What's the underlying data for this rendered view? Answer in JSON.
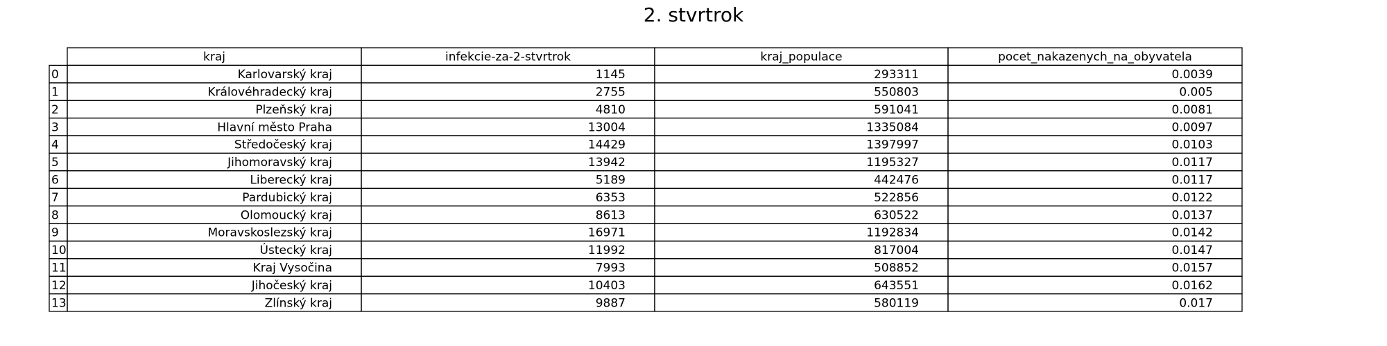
{
  "chart_data": {
    "type": "table",
    "title": "2. stvrtrok",
    "columns": [
      "kraj",
      "infekcie-za-2-stvrtrok",
      "kraj_populace",
      "pocet_nakazenych_na_obyvatela"
    ],
    "row_labels": [
      "0",
      "1",
      "2",
      "3",
      "4",
      "5",
      "6",
      "7",
      "8",
      "9",
      "10",
      "11",
      "12",
      "13"
    ],
    "rows": [
      [
        "Karlovarský kraj",
        "1145",
        "293311",
        "0.0039"
      ],
      [
        "Královéhradecký kraj",
        "2755",
        "550803",
        "0.005"
      ],
      [
        "Plzeňský kraj",
        "4810",
        "591041",
        "0.0081"
      ],
      [
        "Hlavní město Praha",
        "13004",
        "1335084",
        "0.0097"
      ],
      [
        "Středočeský kraj",
        "14429",
        "1397997",
        "0.0103"
      ],
      [
        "Jihomoravský kraj",
        "13942",
        "1195327",
        "0.0117"
      ],
      [
        "Liberecký kraj",
        "5189",
        "442476",
        "0.0117"
      ],
      [
        "Pardubický kraj",
        "6353",
        "522856",
        "0.0122"
      ],
      [
        "Olomoucký kraj",
        "8613",
        "630522",
        "0.0137"
      ],
      [
        "Moravskoslezský kraj",
        "16971",
        "1192834",
        "0.0142"
      ],
      [
        "Ústecký kraj",
        "11992",
        "817004",
        "0.0147"
      ],
      [
        "Kraj Vysočina",
        "7993",
        "508852",
        "0.0157"
      ],
      [
        "Jihočeský kraj",
        "10403",
        "643551",
        "0.0162"
      ],
      [
        "Zlínský kraj",
        "9887",
        "580119",
        "0.017"
      ]
    ]
  }
}
